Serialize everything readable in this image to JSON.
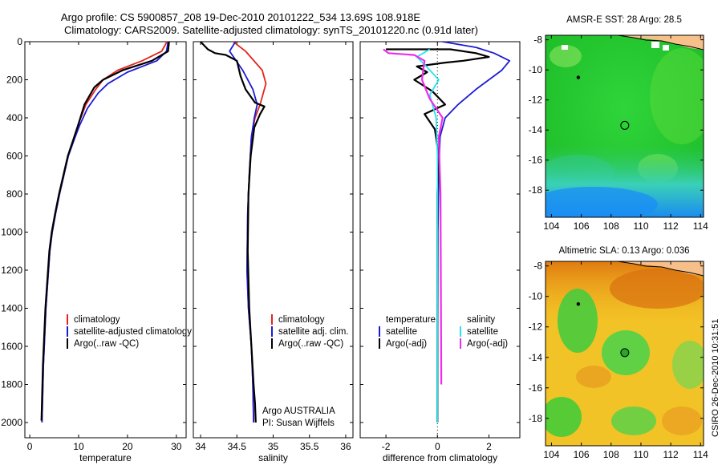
{
  "header": {
    "line1": "Argo profile: CS 5900857_208 19-Dec-2010 20101222_534 13.69S 108.918E",
    "line2": "Climatology: CARS2009. Satellite-adjusted climatology: synTS_20101220.nc (0.91d later)"
  },
  "credit": "CSIRO 26-Dec-2010 10:31:51",
  "colors": {
    "red": "#e3261d",
    "blue": "#1c1cd6",
    "black": "#000000",
    "cyan": "#28e2ef",
    "magenta": "#ee2bee"
  },
  "chart_data": [
    {
      "type": "line",
      "xlabel": "temperature",
      "ylabel": "",
      "xlim": [
        -1,
        32
      ],
      "ylim": [
        2080,
        0
      ],
      "xticks": [
        "0",
        "10",
        "20",
        "30"
      ],
      "xtick_values": [
        0,
        10,
        20,
        30
      ],
      "yticks": [
        "0",
        "200",
        "400",
        "600",
        "800",
        "1000",
        "1200",
        "1400",
        "1600",
        "1800",
        "2000"
      ],
      "ytick_values": [
        0,
        200,
        400,
        600,
        800,
        1000,
        1200,
        1400,
        1600,
        1800,
        2000
      ],
      "legend": [
        "climatology",
        "satellite-adjusted climatology",
        "Argo(..raw -QC)"
      ],
      "legend_position": "lower-center",
      "series": [
        {
          "name": "climatology",
          "color": "red",
          "x": [
            28.1,
            27.0,
            23.0,
            18.0,
            15.0,
            13.5,
            11.5,
            10.0,
            9.2,
            7.8,
            7.0,
            6.1,
            5.3,
            4.6,
            4.1,
            3.3,
            2.8,
            2.5
          ],
          "y": [
            0,
            50,
            100,
            150,
            200,
            250,
            330,
            430,
            500,
            600,
            700,
            800,
            900,
            1000,
            1100,
            1400,
            1700,
            2000
          ]
        },
        {
          "name": "satellite-adjusted climatology",
          "color": "blue",
          "x": [
            28.3,
            28.0,
            26.0,
            20.0,
            16.0,
            14.0,
            11.8,
            10.2,
            9.3,
            7.9,
            7.0,
            6.1,
            5.3,
            4.6,
            4.1,
            3.3,
            2.8,
            2.5
          ],
          "y": [
            0,
            50,
            100,
            160,
            220,
            270,
            350,
            440,
            500,
            600,
            700,
            800,
            900,
            1000,
            1100,
            1400,
            1700,
            2000
          ]
        },
        {
          "name": "Argo(..raw -QC)",
          "color": "black",
          "x": [
            28.5,
            28.3,
            25.0,
            19.0,
            15.0,
            13.2,
            11.2,
            10.0,
            9.1,
            7.8,
            6.9,
            6.0,
            5.2,
            4.5,
            4.0,
            3.2,
            2.7,
            2.4
          ],
          "y": [
            0,
            50,
            100,
            150,
            200,
            240,
            330,
            430,
            500,
            600,
            700,
            800,
            900,
            1000,
            1100,
            1400,
            1700,
            1990
          ]
        }
      ]
    },
    {
      "type": "line",
      "xlabel": "salinity",
      "ylabel": "",
      "xlim": [
        33.9,
        36.1
      ],
      "ylim": [
        2080,
        0
      ],
      "xticks": [
        "34",
        "34.5",
        "35",
        "35.5",
        "36"
      ],
      "xtick_values": [
        34,
        34.5,
        35,
        35.5,
        36
      ],
      "legend": [
        "climatology",
        "satellite adj. clim.",
        "Argo(..raw -QC)"
      ],
      "legend_position": "lower-right",
      "annotations": [
        "Argo AUSTRALIA",
        "PI: Susan Wijffels"
      ],
      "series": [
        {
          "name": "climatology",
          "color": "red",
          "x": [
            34.45,
            34.62,
            34.85,
            34.9,
            34.82,
            34.75,
            34.7,
            34.67,
            34.65,
            34.64,
            34.66,
            34.7,
            34.72,
            34.73
          ],
          "y": [
            0,
            50,
            150,
            220,
            330,
            400,
            500,
            700,
            900,
            1200,
            1400,
            1600,
            1800,
            2000
          ]
        },
        {
          "name": "satellite adj. clim.",
          "color": "blue",
          "x": [
            34.48,
            34.4,
            34.58,
            34.72,
            34.78,
            34.74,
            34.7,
            34.67,
            34.65,
            34.64,
            34.66,
            34.7,
            34.72,
            34.73
          ],
          "y": [
            0,
            50,
            150,
            250,
            330,
            400,
            500,
            700,
            900,
            1200,
            1400,
            1600,
            1800,
            2000
          ]
        },
        {
          "name": "Argo(..raw -QC)",
          "color": "black",
          "x": [
            34.0,
            34.1,
            34.2,
            34.35,
            34.5,
            34.55,
            34.62,
            34.75,
            34.88,
            34.82,
            34.74,
            34.69,
            34.66,
            34.65,
            34.67,
            34.7,
            34.73,
            34.75,
            34.76
          ],
          "y": [
            0,
            40,
            60,
            70,
            100,
            180,
            250,
            320,
            340,
            380,
            450,
            600,
            800,
            1100,
            1400,
            1600,
            1800,
            1900,
            2000
          ]
        }
      ]
    },
    {
      "type": "line",
      "xlabel": "difference from climatology",
      "ylabel": "",
      "xlim": [
        -3,
        3.2
      ],
      "ylim": [
        2080,
        0
      ],
      "xticks": [
        "-2",
        "0",
        "2"
      ],
      "xtick_values": [
        -2,
        0,
        2
      ],
      "legend_temperature": {
        "header": "temperature",
        "entries": [
          "satellite",
          "Argo(-adj)"
        ]
      },
      "legend_salinity": {
        "header": "salinity",
        "entries": [
          "satellite",
          "Argo(-adj)"
        ]
      },
      "series": [
        {
          "name": "temperature satellite",
          "color": "blue",
          "x": [
            0.2,
            1.5,
            2.2,
            2.8,
            2.5,
            1.5,
            0.8,
            0.3,
            0.1,
            0.05,
            0.02,
            0
          ],
          "y": [
            0,
            30,
            60,
            100,
            150,
            250,
            330,
            400,
            500,
            700,
            1000,
            2000
          ]
        },
        {
          "name": "temperature Argo(-adj)",
          "color": "black",
          "x": [
            -2,
            0.5,
            1.5,
            2.0,
            1.0,
            0.3,
            -0.8,
            -0.4,
            -0.9,
            -0.2,
            0.3,
            -0.5,
            -0.1,
            0.05,
            0,
            0,
            0
          ],
          "y": [
            40,
            40,
            60,
            80,
            100,
            110,
            130,
            160,
            200,
            260,
            330,
            380,
            460,
            600,
            800,
            1000,
            2000
          ]
        },
        {
          "name": "salinity satellite",
          "color": "cyan",
          "x": [
            -0.3,
            -0.8,
            -0.5,
            0.05,
            -0.3,
            -0.05,
            0,
            0
          ],
          "y": [
            40,
            80,
            120,
            200,
            280,
            400,
            600,
            2000
          ]
        },
        {
          "name": "salinity Argo(-adj)",
          "color": "magenta",
          "x": [
            -2.1,
            -1.9,
            -0.9,
            -0.5,
            -0.6,
            -0.3,
            0.2,
            0.05,
            0.12,
            0.15
          ],
          "y": [
            40,
            60,
            70,
            100,
            200,
            300,
            400,
            500,
            800,
            1800
          ]
        }
      ]
    },
    {
      "type": "heatmap",
      "title": "AMSR-E SST: 28 Argo: 28.5",
      "xticks": [
        "104",
        "106",
        "108",
        "110",
        "112",
        "114"
      ],
      "xtick_values": [
        104,
        106,
        108,
        110,
        112,
        114
      ],
      "yticks": [
        "-8",
        "-10",
        "-12",
        "-14",
        "-16",
        "-18"
      ],
      "ytick_values": [
        -8,
        -10,
        -12,
        -14,
        -16,
        -18
      ],
      "xlim": [
        103.6,
        114.2
      ],
      "ylim": [
        -19.8,
        -7.7
      ],
      "marker": {
        "lon": 108.918,
        "lat": -13.69,
        "style": "open circle"
      }
    },
    {
      "type": "heatmap",
      "title": "Altimetric SLA: 0.13 Argo: 0.036",
      "xticks": [
        "104",
        "106",
        "108",
        "110",
        "112",
        "114"
      ],
      "xtick_values": [
        104,
        106,
        108,
        110,
        112,
        114
      ],
      "yticks": [
        "-8",
        "-10",
        "-12",
        "-14",
        "-16",
        "-18"
      ],
      "ytick_values": [
        -8,
        -10,
        -12,
        -14,
        -16,
        -18
      ],
      "xlim": [
        103.6,
        114.2
      ],
      "ylim": [
        -19.8,
        -7.7
      ],
      "marker": {
        "lon": 108.918,
        "lat": -13.69,
        "style": "filled green circle"
      }
    }
  ]
}
